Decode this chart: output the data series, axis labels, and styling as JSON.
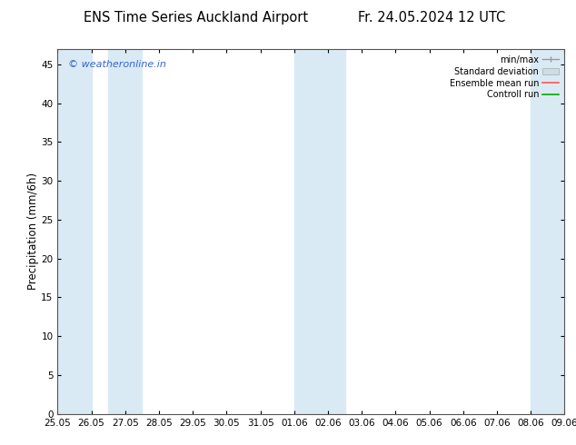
{
  "title_left": "ENS Time Series Auckland Airport",
  "title_right": "Fr. 24.05.2024 12 UTC",
  "ylabel": "Precipitation (mm/6h)",
  "ylim": [
    0,
    47
  ],
  "yticks": [
    0,
    5,
    10,
    15,
    20,
    25,
    30,
    35,
    40,
    45
  ],
  "xlim": [
    0,
    15
  ],
  "xtick_labels": [
    "25.05",
    "26.05",
    "27.05",
    "28.05",
    "29.05",
    "30.05",
    "31.05",
    "01.06",
    "02.06",
    "03.06",
    "04.06",
    "05.06",
    "06.06",
    "07.06",
    "08.06",
    "09.06"
  ],
  "xtick_positions": [
    0,
    1,
    2,
    3,
    4,
    5,
    6,
    7,
    8,
    9,
    10,
    11,
    12,
    13,
    14,
    15
  ],
  "shaded_bands": [
    [
      -0.2,
      1.0
    ],
    [
      1.5,
      2.5
    ],
    [
      7.0,
      8.5
    ],
    [
      14.0,
      15.2
    ]
  ],
  "shade_color": "#daeaf5",
  "background_color": "#ffffff",
  "watermark": "© weatheronline.in",
  "watermark_color": "#3366cc",
  "legend_labels": [
    "min/max",
    "Standard deviation",
    "Ensemble mean run",
    "Controll run"
  ],
  "legend_colors": [
    "#aaaaaa",
    "#ccddee",
    "#ff4444",
    "#00aa00"
  ],
  "title_fontsize": 10.5,
  "tick_fontsize": 7.5,
  "ylabel_fontsize": 8.5
}
